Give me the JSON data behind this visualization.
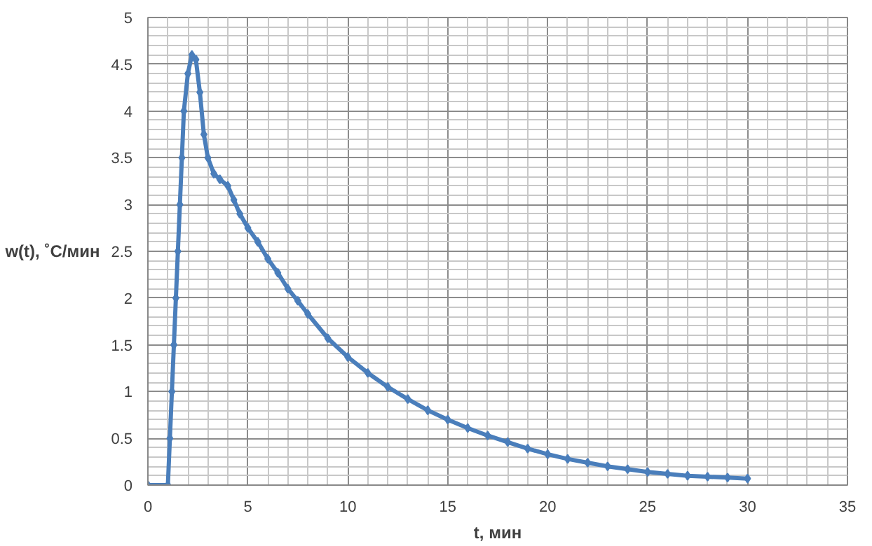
{
  "chart_data": {
    "type": "line",
    "xlabel": "t, мин",
    "ylabel": "w(t), ˚C/мин",
    "xlim": [
      0,
      35
    ],
    "xticks": [
      0,
      5,
      10,
      15,
      20,
      25,
      30,
      35
    ],
    "ylim": [
      0,
      5
    ],
    "yticks": [
      0,
      0.5,
      1,
      1.5,
      2,
      2.5,
      3,
      3.5,
      4,
      4.5,
      5
    ],
    "grid": true,
    "marker": "diamond",
    "line_style": "solid",
    "series": [
      {
        "color": "#4a7ebb",
        "x": [
          0,
          1,
          1.1,
          1.2,
          1.3,
          1.4,
          1.5,
          1.6,
          1.7,
          1.8,
          2.0,
          2.2,
          2.4,
          2.6,
          2.8,
          3.0,
          3.3,
          3.6,
          4.0,
          4.3,
          4.6,
          5,
          5.5,
          6,
          6.5,
          7,
          7.5,
          8,
          9,
          10,
          11,
          12,
          13,
          14,
          15,
          16,
          17,
          18,
          19,
          20,
          21,
          22,
          23,
          24,
          25,
          26,
          27,
          28,
          29,
          30
        ],
        "values": [
          0,
          0,
          0.5,
          1.0,
          1.5,
          2.0,
          2.5,
          3.0,
          3.5,
          4.0,
          4.4,
          4.6,
          4.55,
          4.2,
          3.75,
          3.5,
          3.33,
          3.27,
          3.2,
          3.05,
          2.9,
          2.75,
          2.6,
          2.42,
          2.27,
          2.1,
          1.97,
          1.83,
          1.57,
          1.37,
          1.2,
          1.05,
          0.92,
          0.8,
          0.7,
          0.61,
          0.53,
          0.46,
          0.39,
          0.33,
          0.28,
          0.24,
          0.2,
          0.17,
          0.14,
          0.12,
          0.1,
          0.09,
          0.08,
          0.07
        ]
      }
    ]
  }
}
